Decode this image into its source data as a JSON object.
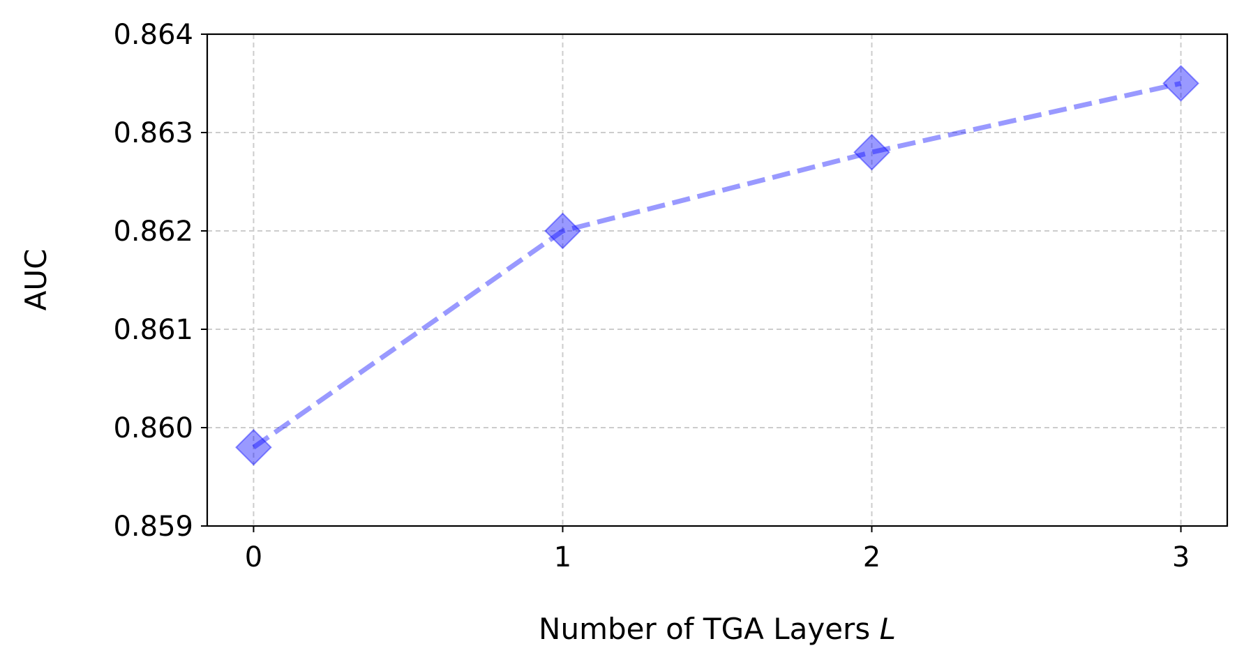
{
  "chart_data": {
    "type": "line",
    "title": "",
    "xlabel": "Number of TGA Layers",
    "xlabel_var": "L",
    "ylabel": "AUC",
    "x": [
      0,
      1,
      2,
      3
    ],
    "x_ticks": [
      "0",
      "1",
      "2",
      "3"
    ],
    "xlim": [
      -0.15,
      3.15
    ],
    "ylim": [
      0.859,
      0.864
    ],
    "y_ticks": [
      "0.859",
      "0.860",
      "0.861",
      "0.862",
      "0.863",
      "0.864"
    ],
    "y_tick_values": [
      0.859,
      0.86,
      0.861,
      0.862,
      0.863,
      0.864
    ],
    "series": [
      {
        "values": [
          0.8598,
          0.862,
          0.8628,
          0.8635
        ],
        "color": "#0000ff",
        "line_style": "dashed",
        "marker": "diamond",
        "alpha": 0.4
      }
    ],
    "grid": true,
    "legend": "none"
  }
}
